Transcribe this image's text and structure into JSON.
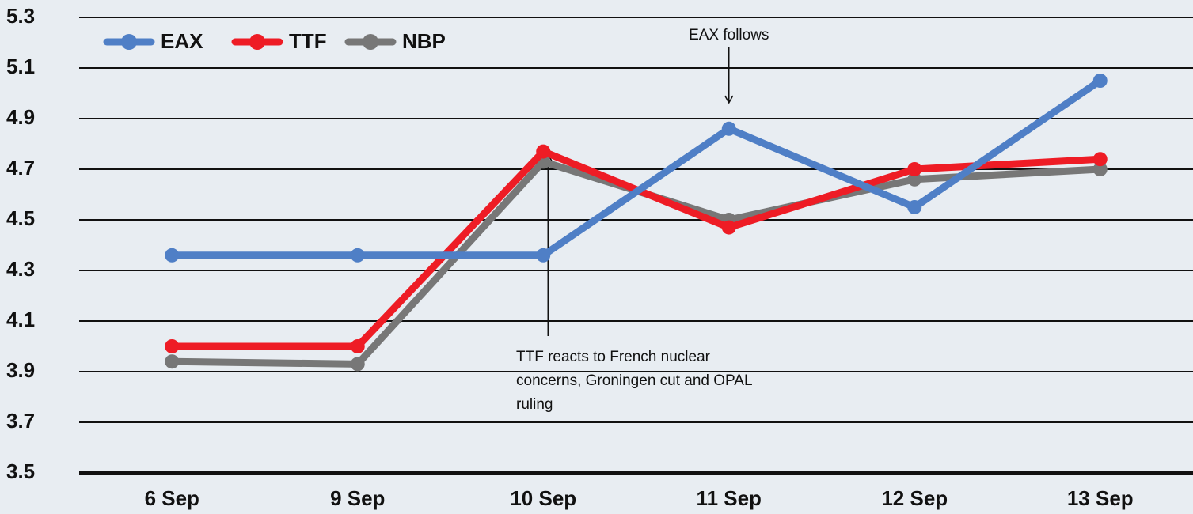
{
  "chart_data": {
    "type": "line",
    "categories": [
      "6 Sep",
      "9 Sep",
      "10 Sep",
      "11 Sep",
      "12 Sep",
      "13 Sep"
    ],
    "series": [
      {
        "name": "EAX",
        "color": "#4f7fc6",
        "values": [
          4.36,
          4.36,
          4.36,
          4.86,
          4.55,
          5.05
        ]
      },
      {
        "name": "TTF",
        "color": "#ee1c25",
        "values": [
          4.0,
          4.0,
          4.77,
          4.47,
          4.7,
          4.74
        ]
      },
      {
        "name": "NBP",
        "color": "#777777",
        "values": [
          3.94,
          3.93,
          4.73,
          4.5,
          4.66,
          4.7
        ]
      }
    ],
    "ylim": [
      3.5,
      5.3
    ],
    "yticks": [
      3.5,
      3.7,
      3.9,
      4.1,
      4.3,
      4.5,
      4.7,
      4.9,
      5.1,
      5.3
    ],
    "grid": true,
    "legend": "top-left",
    "annotations": [
      {
        "lines": [
          "EAX follows"
        ]
      },
      {
        "lines": [
          "TTF reacts to French nuclear",
          "concerns, Groningen cut and OPAL",
          "ruling"
        ]
      }
    ]
  }
}
